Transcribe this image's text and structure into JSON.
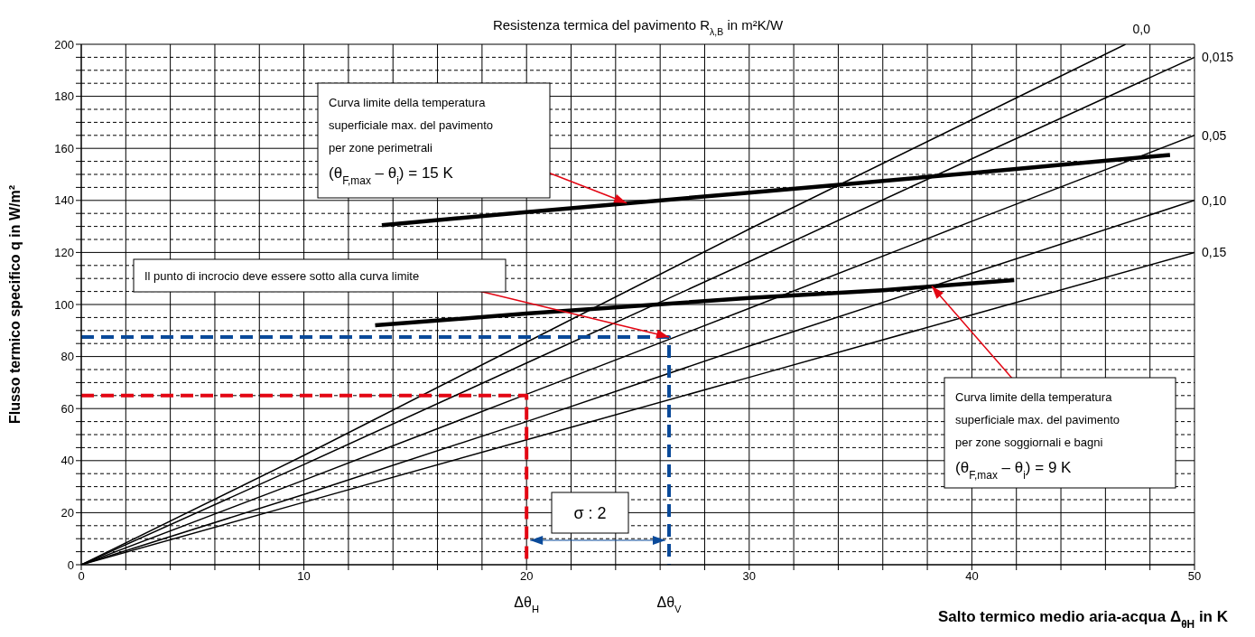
{
  "chart_data": {
    "type": "line",
    "title": "Resistenza termica del pavimento R$_{λ,B}$ in m²K/W",
    "xlabel": "Salto termico medio aria-acqua Δ$_{θH}$ in K",
    "ylabel": "Flusso termico specifico q in W/m²",
    "xlim": [
      0,
      50
    ],
    "ylim": [
      0,
      200
    ],
    "xticks": [
      0,
      {
        "value": 2,
        "label": null
      },
      {
        "value": 4,
        "label": null
      },
      {
        "value": 6,
        "label": null
      },
      {
        "value": 8,
        "label": null
      },
      10,
      {
        "value": 12,
        "label": null
      },
      {
        "value": 14,
        "label": null
      },
      {
        "value": 16,
        "label": null
      },
      {
        "value": 18,
        "label": null
      },
      20,
      {
        "value": 22,
        "label": null
      },
      {
        "value": 24,
        "label": null
      },
      {
        "value": 26,
        "label": null
      },
      {
        "value": 28,
        "label": null
      },
      30,
      {
        "value": 32,
        "label": null
      },
      {
        "value": 34,
        "label": null
      },
      {
        "value": 36,
        "label": null
      },
      {
        "value": 38,
        "label": null
      },
      40,
      {
        "value": 42,
        "label": null
      },
      {
        "value": 44,
        "label": null
      },
      {
        "value": 46,
        "label": null
      },
      {
        "value": 48,
        "label": null
      },
      50
    ],
    "yticks": [
      0,
      {
        "value": 5,
        "label": null
      },
      {
        "value": 10,
        "label": null
      },
      {
        "value": 15,
        "label": null
      },
      20,
      {
        "value": 25,
        "label": null
      },
      {
        "value": 30,
        "label": null
      },
      {
        "value": 35,
        "label": null
      },
      40,
      {
        "value": 45,
        "label": null
      },
      {
        "value": 50,
        "label": null
      },
      {
        "value": 55,
        "label": null
      },
      60,
      {
        "value": 65,
        "label": null
      },
      {
        "value": 70,
        "label": null
      },
      {
        "value": 75,
        "label": null
      },
      80,
      {
        "value": 85,
        "label": null
      },
      {
        "value": 90,
        "label": null
      },
      {
        "value": 95,
        "label": null
      },
      100,
      {
        "value": 105,
        "label": null
      },
      {
        "value": 110,
        "label": null
      },
      {
        "value": 115,
        "label": null
      },
      120,
      {
        "value": 125,
        "label": null
      },
      {
        "value": 130,
        "label": null
      },
      {
        "value": 135,
        "label": null
      },
      140,
      {
        "value": 145,
        "label": null
      },
      {
        "value": 150,
        "label": null
      },
      {
        "value": 155,
        "label": null
      },
      160,
      {
        "value": 165,
        "label": null
      },
      {
        "value": 170,
        "label": null
      },
      {
        "value": 175,
        "label": null
      },
      180,
      {
        "value": 185,
        "label": null
      },
      {
        "value": 190,
        "label": null
      },
      {
        "value": 195,
        "label": null
      },
      200
    ],
    "grid": true,
    "series": [
      {
        "name": "0,0",
        "color": "#000000",
        "x": [
          0,
          10,
          20,
          30,
          40,
          46.9
        ],
        "values": [
          0,
          42,
          85.5,
          129,
          171,
          200
        ]
      },
      {
        "name": "0,015",
        "color": "#000000",
        "x": [
          0,
          10,
          20,
          30,
          40,
          50
        ],
        "values": [
          0,
          38.5,
          77.5,
          116.5,
          156,
          195
        ]
      },
      {
        "name": "0,05",
        "color": "#000000",
        "x": [
          0,
          10,
          20,
          30,
          40,
          50
        ],
        "values": [
          0,
          32.5,
          65.5,
          98.5,
          132,
          165
        ]
      },
      {
        "name": "0,10",
        "color": "#000000",
        "x": [
          0,
          10,
          20,
          30,
          40,
          50
        ],
        "values": [
          0,
          27,
          55,
          84,
          112,
          140
        ]
      },
      {
        "name": "0,15",
        "color": "#000000",
        "x": [
          0,
          10,
          20,
          30,
          40,
          50
        ],
        "values": [
          0,
          24,
          48,
          72,
          96,
          120
        ]
      },
      {
        "color": "#000000",
        "x": [
          13.5,
          20,
          30,
          40,
          48.9
        ],
        "values": [
          130.5,
          135.5,
          143,
          150.5,
          157.5
        ]
      },
      {
        "color": "#000000",
        "x": [
          13.2,
          20,
          30,
          36,
          41.9
        ],
        "values": [
          92,
          96.5,
          102.5,
          105.5,
          109.4
        ]
      },
      {
        "color": "#e30613",
        "line_style": "dashed",
        "x": [
          0,
          20,
          20
        ],
        "values": [
          65,
          65,
          0
        ]
      },
      {
        "color": "#0a4a9a",
        "line_style": "dashed",
        "x": [
          0,
          26.4,
          26.4
        ],
        "values": [
          87.5,
          87.5,
          0
        ]
      }
    ],
    "annotations": [
      {
        "text": "Curva limite della temperatura\nsuperficiale max. del pavimento\nper zone perimetrali\n(θ$_{F,max}$ – θ$_{i}$) = 15 K",
        "x": 24.5,
        "y": 139
      },
      "Il punto di incrocio deve essere sotto alla curva limite",
      {
        "text": "Curva limite della temperatura\nsuperficiale max. del pavimento\nper zone soggiornali e bagni\n(θ$_{F,max}$ – θ$_{i}$) = 9 K",
        "x": 38.2,
        "y": 107
      },
      "σ : 2",
      "Δθ$_{H}$",
      "Δθ$_{V}$"
    ]
  }
}
